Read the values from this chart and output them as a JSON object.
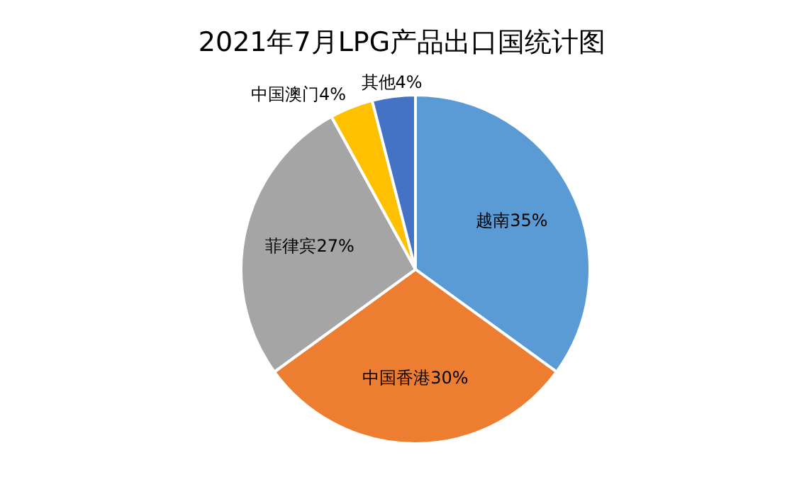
{
  "chart_data": {
    "type": "pie",
    "title": "2021年7月LPG产品出口国统计图",
    "categories": [
      "越南",
      "中国香港",
      "菲律宾",
      "中国澳门",
      "其他"
    ],
    "values": [
      35,
      30,
      27,
      4,
      4
    ],
    "value_labels": [
      "35%",
      "30%",
      "27%",
      "4%",
      "4%"
    ],
    "colors": [
      "#5b9bd5",
      "#ed7d31",
      "#a5a5a5",
      "#ffc000",
      "#4472c4"
    ]
  }
}
